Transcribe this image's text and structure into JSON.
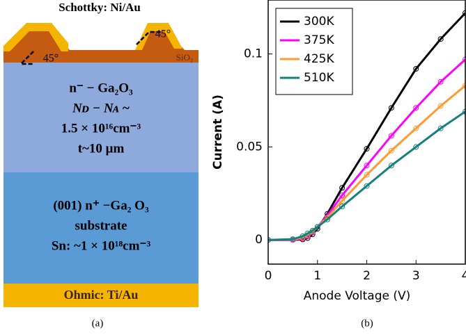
{
  "panel_a": {
    "title": "Schottky: Ni/Au",
    "angle_left": "45°",
    "angle_right": "45°",
    "oxide": "SiO₂",
    "drift_layer": [
      "n⁻ − Ga₂O₃",
      "Nᴅ − Nᴀ ~",
      "1.5 × 10¹⁶cm⁻³",
      "t~10 μm"
    ],
    "substrate": [
      "(001) n⁺ −Ga₂ O₃",
      "substrate",
      "Sn: ~1 × 10¹⁸cm⁻³"
    ],
    "ohmic": "Ohmic: Ti/Au"
  },
  "captions": [
    "(a)",
    "(b)"
  ],
  "chart_data": {
    "type": "line",
    "xlabel": "Anode Voltage (V)",
    "ylabel": "Current (A)",
    "x": [
      0,
      0.5,
      0.7,
      0.8,
      0.9,
      1,
      1.2,
      1.5,
      2,
      2.5,
      3,
      3.5,
      4
    ],
    "series": [
      {
        "name": "300K",
        "color": "#000000",
        "values": [
          0,
          0,
          0.0003,
          0.001,
          0.003,
          0.006,
          0.014,
          0.028,
          0.049,
          0.071,
          0.092,
          0.108,
          0.122
        ]
      },
      {
        "name": "375K",
        "color": "#ff00ff",
        "values": [
          0,
          0,
          0.0008,
          0.002,
          0.004,
          0.007,
          0.013,
          0.024,
          0.04,
          0.056,
          0.071,
          0.085,
          0.097
        ]
      },
      {
        "name": "425K",
        "color": "#ff9933",
        "values": [
          0,
          0.0002,
          0.0012,
          0.0025,
          0.0045,
          0.007,
          0.012,
          0.021,
          0.035,
          0.048,
          0.06,
          0.072,
          0.083
        ]
      },
      {
        "name": "510K",
        "color": "#138080",
        "values": [
          0,
          0.0004,
          0.002,
          0.0035,
          0.005,
          0.007,
          0.011,
          0.018,
          0.029,
          0.04,
          0.05,
          0.06,
          0.069
        ]
      }
    ],
    "xlim": [
      0,
      4
    ],
    "ylim": [
      -0.013,
      0.129
    ],
    "xticks": [
      0,
      1,
      2,
      3,
      4
    ],
    "yticks": [
      0,
      0.05,
      0.1
    ],
    "legend": "upper left",
    "markers": true
  }
}
